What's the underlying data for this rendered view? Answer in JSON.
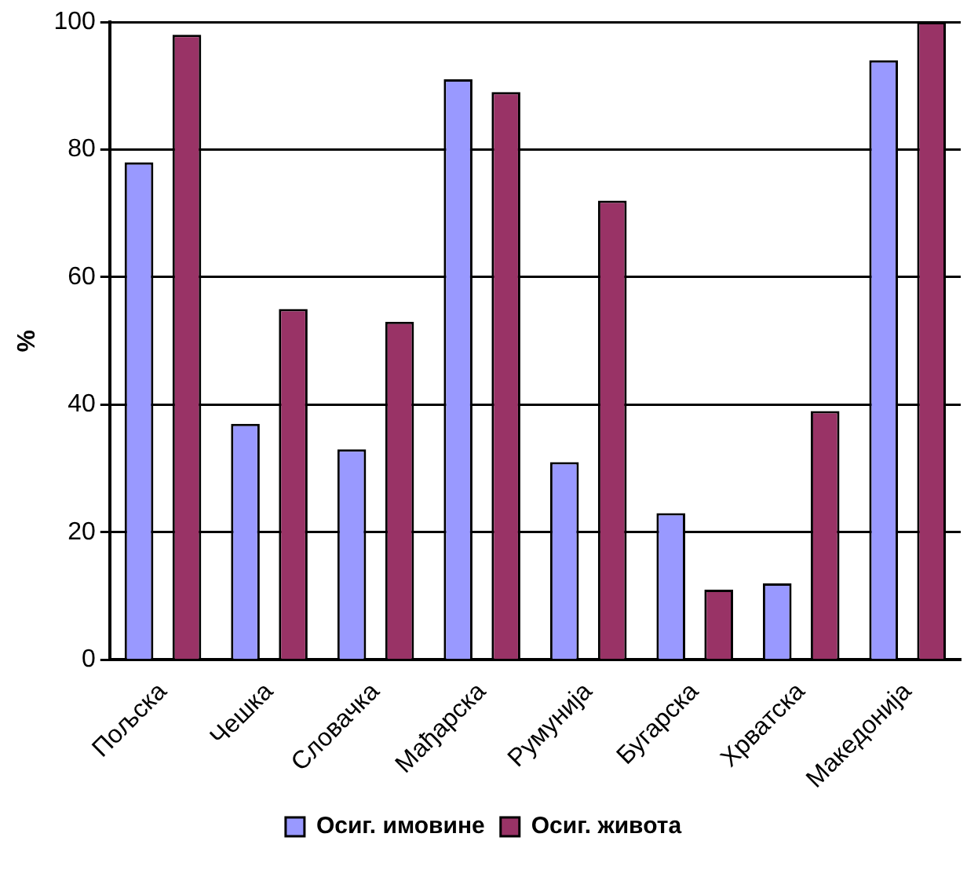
{
  "chart_data": {
    "type": "bar",
    "ylabel": "%",
    "categories": [
      "Пољска",
      "Чешка",
      "Словачка",
      "Мађарска",
      "Румунија",
      "Бугарска",
      "Хрватска",
      "Македонија"
    ],
    "series": [
      {
        "name": "Осиг. имовине",
        "color": "#9999ff",
        "values": [
          78,
          37,
          33,
          91,
          31,
          23,
          12,
          94
        ]
      },
      {
        "name": "Осиг. живота",
        "color": "#993366",
        "values": [
          98,
          55,
          53,
          89,
          72,
          11,
          39,
          100
        ]
      }
    ],
    "ylim": [
      0,
      100
    ],
    "yticks": [
      0,
      20,
      40,
      60,
      80,
      100
    ],
    "grid": "y",
    "legend": "bottom"
  }
}
